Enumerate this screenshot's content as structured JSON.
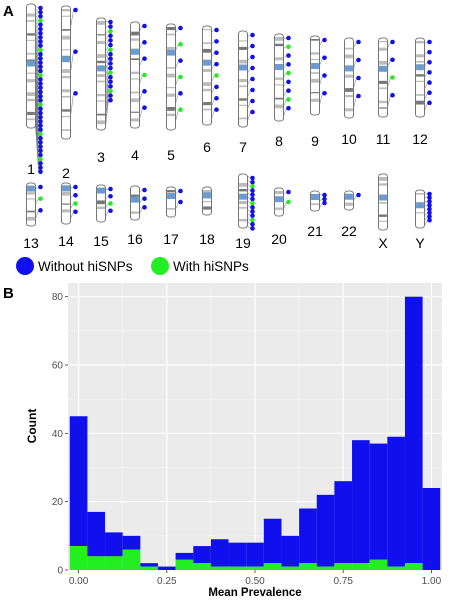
{
  "panel_a": {
    "letter": "A",
    "chromosomes": [
      {
        "label": "1",
        "blue": 34,
        "green": 6
      },
      {
        "label": "2",
        "blue": 3,
        "green": 0
      },
      {
        "label": "3",
        "blue": 14,
        "green": 4
      },
      {
        "label": "4",
        "blue": 5,
        "green": 1
      },
      {
        "label": "5",
        "blue": 3,
        "green": 3
      },
      {
        "label": "6",
        "blue": 7,
        "green": 1
      },
      {
        "label": "7",
        "blue": 8,
        "green": 0
      },
      {
        "label": "8",
        "blue": 6,
        "green": 3
      },
      {
        "label": "9",
        "blue": 4,
        "green": 0
      },
      {
        "label": "10",
        "blue": 4,
        "green": 0
      },
      {
        "label": "11",
        "blue": 3,
        "green": 1
      },
      {
        "label": "12",
        "blue": 7,
        "green": 0
      },
      {
        "label": "13",
        "blue": 2,
        "green": 1
      },
      {
        "label": "14",
        "blue": 3,
        "green": 1
      },
      {
        "label": "15",
        "blue": 3,
        "green": 1
      },
      {
        "label": "16",
        "blue": 3,
        "green": 0
      },
      {
        "label": "17",
        "blue": 2,
        "green": 0
      },
      {
        "label": "18",
        "blue": 0,
        "green": 0
      },
      {
        "label": "19",
        "blue": 10,
        "green": 3
      },
      {
        "label": "20",
        "blue": 1,
        "green": 1
      },
      {
        "label": "21",
        "blue": 3,
        "green": 0
      },
      {
        "label": "22",
        "blue": 1,
        "green": 0
      },
      {
        "label": "X",
        "blue": 0,
        "green": 0
      },
      {
        "label": "Y",
        "blue": 8,
        "green": 0
      }
    ],
    "legend": [
      {
        "label": "Without hiSNPs",
        "color": "#1010ee"
      },
      {
        "label": "With hiSNPs",
        "color": "#22ee22"
      }
    ]
  },
  "panel_b": {
    "letter": "B"
  },
  "chart_data": {
    "type": "bar",
    "subtype": "stacked-histogram",
    "xlabel": "Mean Prevalence",
    "ylabel": "Count",
    "xlim": [
      -0.03,
      1.03
    ],
    "ylim": [
      0,
      84
    ],
    "xticks": [
      0.0,
      0.25,
      0.5,
      0.75,
      1.0
    ],
    "xtick_labels": [
      "0.00",
      "0.25",
      "0.50",
      "0.75",
      "1.00"
    ],
    "yticks": [
      0,
      20,
      40,
      60,
      80
    ],
    "grid": true,
    "bins": [
      {
        "x0": -0.025,
        "x1": 0.025,
        "total": 45,
        "green": 7
      },
      {
        "x0": 0.025,
        "x1": 0.075,
        "total": 17,
        "green": 4
      },
      {
        "x0": 0.075,
        "x1": 0.125,
        "total": 11,
        "green": 4
      },
      {
        "x0": 0.125,
        "x1": 0.175,
        "total": 10,
        "green": 6
      },
      {
        "x0": 0.175,
        "x1": 0.225,
        "total": 2,
        "green": 1
      },
      {
        "x0": 0.225,
        "x1": 0.275,
        "total": 1,
        "green": 0
      },
      {
        "x0": 0.275,
        "x1": 0.325,
        "total": 5,
        "green": 3
      },
      {
        "x0": 0.325,
        "x1": 0.375,
        "total": 7,
        "green": 2
      },
      {
        "x0": 0.375,
        "x1": 0.425,
        "total": 9,
        "green": 1
      },
      {
        "x0": 0.425,
        "x1": 0.475,
        "total": 8,
        "green": 1
      },
      {
        "x0": 0.475,
        "x1": 0.525,
        "total": 8,
        "green": 1
      },
      {
        "x0": 0.525,
        "x1": 0.575,
        "total": 15,
        "green": 2
      },
      {
        "x0": 0.575,
        "x1": 0.625,
        "total": 10,
        "green": 1
      },
      {
        "x0": 0.625,
        "x1": 0.675,
        "total": 18,
        "green": 2
      },
      {
        "x0": 0.675,
        "x1": 0.725,
        "total": 22,
        "green": 1
      },
      {
        "x0": 0.725,
        "x1": 0.775,
        "total": 26,
        "green": 2
      },
      {
        "x0": 0.775,
        "x1": 0.825,
        "total": 38,
        "green": 2
      },
      {
        "x0": 0.825,
        "x1": 0.875,
        "total": 37,
        "green": 3
      },
      {
        "x0": 0.875,
        "x1": 0.925,
        "total": 39,
        "green": 1
      },
      {
        "x0": 0.925,
        "x1": 0.975,
        "total": 80,
        "green": 2
      },
      {
        "x0": 0.975,
        "x1": 1.025,
        "total": 24,
        "green": 0
      }
    ],
    "colors": {
      "without": "#1010ee",
      "with": "#22ee22",
      "panel_bg": "#ebebeb",
      "grid": "#ffffff"
    }
  }
}
